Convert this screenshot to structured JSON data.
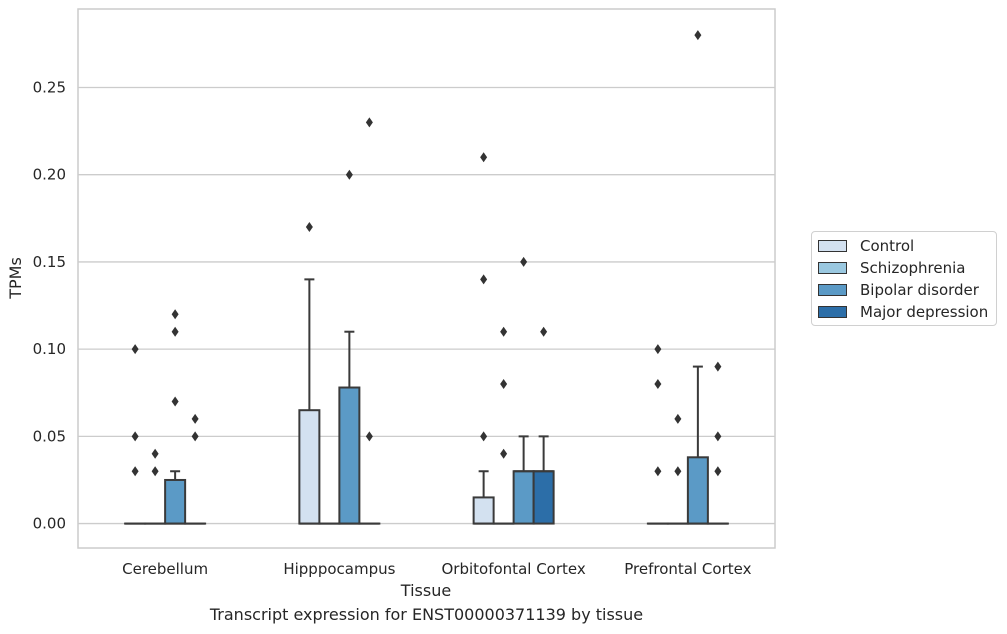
{
  "chart_data": {
    "type": "box",
    "xlabel": "Tissue",
    "ylabel": "TPMs",
    "ylim": [
      -0.014,
      0.295
    ],
    "yticks": [
      "0.00",
      "0.05",
      "0.10",
      "0.15",
      "0.20",
      "0.25"
    ],
    "ytick_values": [
      0,
      0.05,
      0.1,
      0.15,
      0.2,
      0.25
    ],
    "grid": "horizontal",
    "legend_position": "right",
    "categories": [
      "Cerebellum",
      "Hipppocampus",
      "Orbitofontal Cortex",
      "Prefrontal Cortex"
    ],
    "series": [
      {
        "name": "Control",
        "color": "#d3e1f0",
        "boxes": [
          {
            "min": 0,
            "q1": 0,
            "median": 0,
            "q3": 0,
            "max": 0,
            "outliers": [
              0.03,
              0.05,
              0.1
            ]
          },
          {
            "min": 0,
            "q1": 0,
            "median": 0,
            "q3": 0.065,
            "max": 0.14,
            "outliers": [
              0.17
            ]
          },
          {
            "min": 0,
            "q1": 0,
            "median": 0,
            "q3": 0.015,
            "max": 0.03,
            "outliers": [
              0.05,
              0.14,
              0.21
            ]
          },
          {
            "min": 0,
            "q1": 0,
            "median": 0,
            "q3": 0,
            "max": 0,
            "outliers": [
              0.03,
              0.08,
              0.1
            ]
          }
        ]
      },
      {
        "name": "Schizophrenia",
        "color": "#9ac8e0",
        "boxes": [
          {
            "min": 0,
            "q1": 0,
            "median": 0,
            "q3": 0,
            "max": 0,
            "outliers": [
              0.03,
              0.04
            ]
          },
          {
            "min": 0,
            "q1": 0,
            "median": 0,
            "q3": 0,
            "max": 0,
            "outliers": []
          },
          {
            "min": 0,
            "q1": 0,
            "median": 0,
            "q3": 0,
            "max": 0,
            "outliers": [
              0.04,
              0.08,
              0.11
            ]
          },
          {
            "min": 0,
            "q1": 0,
            "median": 0,
            "q3": 0,
            "max": 0,
            "outliers": [
              0.03,
              0.06
            ]
          }
        ]
      },
      {
        "name": "Bipolar disorder",
        "color": "#5b9ac6",
        "boxes": [
          {
            "min": 0,
            "q1": 0,
            "median": 0,
            "q3": 0.025,
            "max": 0.03,
            "outliers": [
              0.07,
              0.11,
              0.12
            ]
          },
          {
            "min": 0,
            "q1": 0,
            "median": 0,
            "q3": 0.078,
            "max": 0.11,
            "outliers": [
              0.2
            ]
          },
          {
            "min": 0,
            "q1": 0,
            "median": 0.03,
            "q3": 0.03,
            "max": 0.05,
            "outliers": [
              0.15
            ]
          },
          {
            "min": 0,
            "q1": 0,
            "median": 0,
            "q3": 0.038,
            "max": 0.09,
            "outliers": [
              0.28
            ]
          }
        ]
      },
      {
        "name": "Major depression",
        "color": "#2c6ea8",
        "boxes": [
          {
            "min": 0,
            "q1": 0,
            "median": 0,
            "q3": 0,
            "max": 0,
            "outliers": [
              0.05,
              0.06
            ]
          },
          {
            "min": 0,
            "q1": 0,
            "median": 0,
            "q3": 0,
            "max": 0,
            "outliers": [
              0.05,
              0.23
            ]
          },
          {
            "min": 0,
            "q1": 0,
            "median": 0.03,
            "q3": 0.03,
            "max": 0.05,
            "outliers": [
              0.11
            ]
          },
          {
            "min": 0,
            "q1": 0,
            "median": 0,
            "q3": 0,
            "max": 0,
            "outliers": [
              0.03,
              0.05,
              0.09
            ]
          }
        ]
      }
    ]
  },
  "caption": "Transcript expression for ENST00000371139 by tissue"
}
